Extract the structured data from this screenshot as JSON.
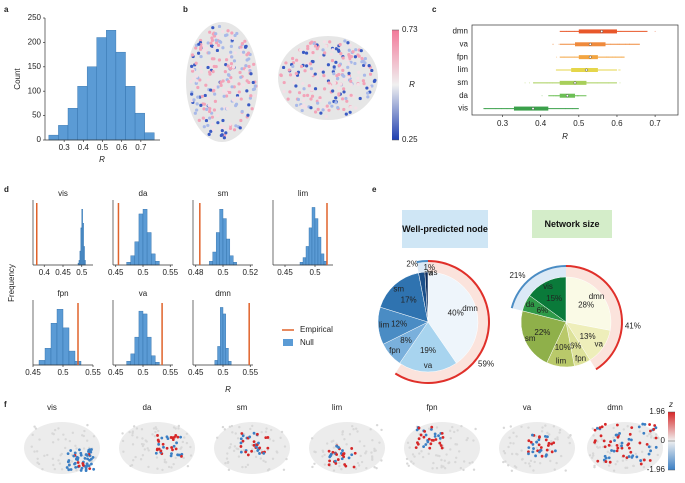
{
  "chart_data": [
    {
      "type": "histogram",
      "panel": "a",
      "xlabel": "R",
      "ylabel": "Count",
      "color": "#5b9bd5",
      "bins": [
        0.22,
        0.27,
        0.32,
        0.37,
        0.42,
        0.47,
        0.52,
        0.57,
        0.62,
        0.67,
        0.72,
        0.77
      ],
      "counts": [
        10,
        30,
        65,
        110,
        150,
        210,
        225,
        180,
        110,
        55,
        15
      ],
      "xlim": [
        0.2,
        0.8
      ],
      "xticks": [
        0.3,
        0.4,
        0.5,
        0.6,
        0.7
      ],
      "ylim": [
        0,
        250
      ],
      "yticks": [
        0,
        50,
        100,
        150,
        200,
        250
      ]
    },
    {
      "type": "brain_colorbar",
      "panel": "b",
      "label": "R",
      "ticks": [
        0.25,
        0.73
      ],
      "colors": [
        "#1f3fb0",
        "#f0f0f0",
        "#f27a9a"
      ]
    },
    {
      "type": "boxplot",
      "panel": "c",
      "xlabel": "R",
      "categories": [
        "dmn",
        "va",
        "fpn",
        "lim",
        "sm",
        "da",
        "vis"
      ],
      "colors": [
        "#e8572a",
        "#ef8a3c",
        "#f3a541",
        "#e5d64a",
        "#a8cf5a",
        "#6cbf55",
        "#3aa04a"
      ],
      "stats": [
        [
          0.45,
          0.5,
          0.56,
          0.6,
          0.68
        ],
        [
          0.45,
          0.49,
          0.53,
          0.57,
          0.66
        ],
        [
          0.45,
          0.5,
          0.53,
          0.55,
          0.62
        ],
        [
          0.44,
          0.48,
          0.52,
          0.55,
          0.6
        ],
        [
          0.38,
          0.45,
          0.49,
          0.52,
          0.6
        ],
        [
          0.42,
          0.45,
          0.47,
          0.49,
          0.52
        ],
        [
          0.25,
          0.33,
          0.38,
          0.42,
          0.5
        ]
      ],
      "xlim": [
        0.22,
        0.76
      ],
      "xticks": [
        0.3,
        0.4,
        0.5,
        0.6,
        0.7
      ]
    },
    {
      "type": "histogram_grid",
      "panel": "d",
      "xlabel": "R",
      "ylabel": "Frequency",
      "legend": [
        "Empirical",
        "Null"
      ],
      "empirical_color": "#e0622a",
      "null_color": "#5b9bd5",
      "ylim": [
        0,
        70
      ],
      "panels": [
        {
          "title": "vis",
          "bins": [
            0.49,
            0.4925,
            0.495,
            0.4975,
            0.5,
            0.5025,
            0.505,
            0.5075,
            0.51
          ],
          "counts": [
            2,
            5,
            15,
            40,
            60,
            45,
            20,
            5
          ],
          "xlim": [
            0.37,
            0.53
          ],
          "xticks": [
            0.4,
            0.45,
            0.5
          ],
          "empirical": 0.38
        },
        {
          "title": "da",
          "bins": [
            0.47,
            0.4775,
            0.485,
            0.4925,
            0.5,
            0.5075,
            0.515,
            0.5225,
            0.53
          ],
          "counts": [
            3,
            10,
            25,
            55,
            60,
            35,
            12,
            4
          ],
          "xlim": [
            0.445,
            0.555
          ],
          "xticks": [
            0.45,
            0.5,
            0.55
          ],
          "empirical": 0.455
        },
        {
          "title": "sm",
          "bins": [
            0.49,
            0.4925,
            0.495,
            0.4975,
            0.5,
            0.5025,
            0.505,
            0.5075,
            0.51
          ],
          "counts": [
            4,
            14,
            35,
            60,
            50,
            28,
            10,
            3
          ],
          "xlim": [
            0.478,
            0.522
          ],
          "xticks": [
            0.48,
            0.5,
            0.52
          ],
          "empirical": 0.483
        },
        {
          "title": "lim",
          "bins": [
            0.475,
            0.48,
            0.485,
            0.49,
            0.495,
            0.5,
            0.505,
            0.51,
            0.515,
            0.52
          ],
          "counts": [
            3,
            8,
            20,
            40,
            62,
            50,
            30,
            12,
            4
          ],
          "xlim": [
            0.43,
            0.53
          ],
          "xticks": [
            0.45,
            0.5
          ],
          "empirical": 0.52
        },
        {
          "title": "fpn",
          "bins": [
            0.46,
            0.47,
            0.48,
            0.49,
            0.5,
            0.51,
            0.52,
            0.53
          ],
          "counts": [
            5,
            18,
            45,
            60,
            40,
            15,
            4
          ],
          "xlim": [
            0.45,
            0.55
          ],
          "xticks": [
            0.45,
            0.5,
            0.55
          ],
          "empirical": 0.525
        },
        {
          "title": "va",
          "bins": [
            0.47,
            0.4775,
            0.485,
            0.4925,
            0.5,
            0.5075,
            0.515,
            0.5225,
            0.53
          ],
          "counts": [
            4,
            12,
            30,
            58,
            55,
            30,
            10,
            3
          ],
          "xlim": [
            0.445,
            0.555
          ],
          "xticks": [
            0.45,
            0.5,
            0.55
          ],
          "empirical": 0.535
        },
        {
          "title": "dmn",
          "bins": [
            0.485,
            0.49,
            0.495,
            0.5,
            0.505,
            0.51,
            0.515
          ],
          "counts": [
            5,
            20,
            62,
            55,
            18,
            4
          ],
          "xlim": [
            0.445,
            0.555
          ],
          "xticks": [
            0.45,
            0.5,
            0.55
          ],
          "empirical": 0.548
        }
      ]
    },
    {
      "type": "pies",
      "panel": "e",
      "pies": [
        {
          "title": "Well-predicted node",
          "title_color": "#cfe6f5",
          "categories": [
            "dmn",
            "va",
            "fpn",
            "lim",
            "sm",
            "da",
            "vis"
          ],
          "values": [
            40,
            19,
            8,
            12,
            17,
            2,
            1
          ],
          "value_labels": [
            "40%",
            "19%",
            "8%",
            "12%",
            "17%",
            "2%",
            "1%"
          ],
          "colors": [
            "#eef5fb",
            "#a8d4ef",
            "#7ab0dc",
            "#4a8cc4",
            "#2f73b0",
            "#1a4f8a",
            "#0b2a5a"
          ],
          "arcs": [
            {
              "value": 59,
              "label": "59%",
              "color": "#e0302a",
              "shade": "#fbe3dc"
            },
            {
              "value": 3,
              "color": "#4a8cc4",
              "shade": "#dbe9f6"
            }
          ]
        },
        {
          "title": "Network size",
          "title_color": "#d4edc9",
          "categories": [
            "dmn",
            "va",
            "fpn",
            "lim",
            "sm",
            "da",
            "vis"
          ],
          "values": [
            28,
            13,
            6,
            10,
            22,
            6,
            15
          ],
          "value_labels": [
            "28%",
            "13%",
            "6%",
            "10%",
            "22%",
            "6%",
            "15%"
          ],
          "colors": [
            "#fafae6",
            "#eeeeba",
            "#dde29a",
            "#b9c96a",
            "#8fb04a",
            "#2f9a48",
            "#0a7a3a"
          ],
          "arcs": [
            {
              "value": 41,
              "label": "41%",
              "color": "#e0302a",
              "shade": "#fbe3dc"
            },
            {
              "value": 21,
              "label": "21%",
              "color": "#4a8cc4",
              "shade": "#dbe9f6"
            }
          ]
        }
      ]
    },
    {
      "type": "brain_maps",
      "panel": "f",
      "categories": [
        "vis",
        "da",
        "sm",
        "lim",
        "fpn",
        "va",
        "dmn"
      ],
      "colorbar": {
        "label": "z",
        "ticks": [
          1.96,
          0,
          -1.96
        ],
        "colors": [
          "#d62728",
          "#f0f0f0",
          "#3b7fc4"
        ]
      }
    }
  ]
}
